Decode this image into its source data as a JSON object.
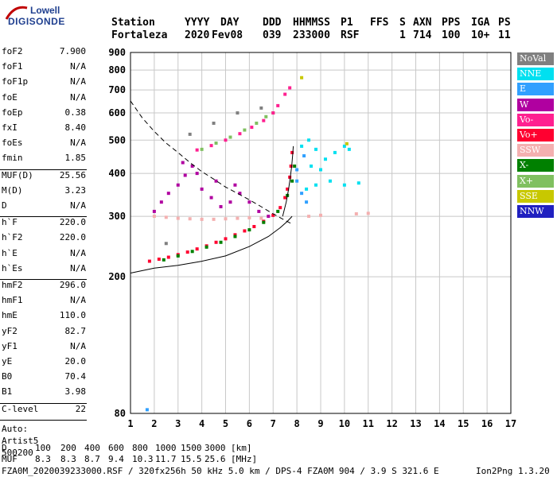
{
  "logo": {
    "line1": "Lowell",
    "line2": "DIGISONDE"
  },
  "header": {
    "labels": [
      "Station",
      "YYYY",
      "DAY",
      "DDD",
      "HHMMSS",
      "P1",
      "FFS",
      "S",
      "AXN",
      "PPS",
      "IGA",
      "PS"
    ],
    "values": [
      "Fortaleza",
      "2020",
      "Fev08",
      "039",
      "233000",
      "RSF",
      "1",
      "714",
      "100",
      "10+",
      "11"
    ]
  },
  "params_group1": [
    {
      "k": "foF2",
      "v": "7.900"
    },
    {
      "k": "foF1",
      "v": "N/A"
    },
    {
      "k": "foF1p",
      "v": "N/A"
    },
    {
      "k": "foE",
      "v": "N/A"
    },
    {
      "k": "foEp",
      "v": "0.38"
    },
    {
      "k": "fxI",
      "v": "8.40"
    },
    {
      "k": "foEs",
      "v": "N/A"
    },
    {
      "k": "fmin",
      "v": "1.85"
    }
  ],
  "params_group2": [
    {
      "k": "MUF(D)",
      "v": "25.56"
    },
    {
      "k": "M(D)",
      "v": "3.23"
    },
    {
      "k": "D",
      "v": "N/A"
    }
  ],
  "params_group3": [
    {
      "k": "h`F",
      "v": "220.0"
    },
    {
      "k": "h`F2",
      "v": "220.0"
    },
    {
      "k": "h`E",
      "v": "N/A"
    },
    {
      "k": "h`Es",
      "v": "N/A"
    }
  ],
  "params_group4": [
    {
      "k": "hmF2",
      "v": "296.0"
    },
    {
      "k": "hmF1",
      "v": "N/A"
    },
    {
      "k": "hmE",
      "v": "110.0"
    },
    {
      "k": "yF2",
      "v": "82.7"
    },
    {
      "k": "yF1",
      "v": "N/A"
    },
    {
      "k": "yE",
      "v": "20.0"
    },
    {
      "k": "B0",
      "v": "70.4"
    },
    {
      "k": "B1",
      "v": "3.98"
    }
  ],
  "params_group5": [
    {
      "k": "C-level",
      "v": "22"
    }
  ],
  "autoscale": {
    "line1": "Auto:",
    "line2": "Artist5",
    "line3": "500200"
  },
  "legend": [
    {
      "label": "NoVal",
      "color": "#808080"
    },
    {
      "label": "NNE",
      "color": "#00e0f0"
    },
    {
      "label": "E",
      "color": "#30a0ff"
    },
    {
      "label": "W",
      "color": "#b000a0"
    },
    {
      "label": "Vo-",
      "color": "#ff2090"
    },
    {
      "label": "Vo+",
      "color": "#ff0030"
    },
    {
      "label": "SSW",
      "color": "#f4b0b0"
    },
    {
      "label": "X-",
      "color": "#008000"
    },
    {
      "label": "X+",
      "color": "#80c060"
    },
    {
      "label": "SSE",
      "color": "#c8c800"
    },
    {
      "label": "NNW",
      "color": "#2020c0"
    }
  ],
  "footer": {
    "d_label": "D",
    "d_values": [
      "100",
      "200",
      "400",
      "600",
      "800",
      "1000",
      "1500",
      "3000"
    ],
    "d_unit": "[km]",
    "muf_label": "MUF",
    "muf_values": [
      "8.3",
      "8.3",
      "8.7",
      "9.4",
      "10.3",
      "11.7",
      "15.5",
      "25.6"
    ],
    "muf_unit": "[MHz]",
    "info": "FZA0M_2020039233000.RSF / 320fx256h 50 kHz 5.0 km / DPS-4 FZA0M 904 / 3.9 S 321.6 E",
    "version": "Ion2Png 1.3.20"
  },
  "chart_data": {
    "type": "scatter",
    "title": "",
    "xlabel": "",
    "ylabel": "",
    "xlim": [
      1,
      17
    ],
    "ylim": [
      80,
      900
    ],
    "y_scale": "log",
    "grid": true,
    "x_ticks": [
      1,
      2,
      3,
      4,
      5,
      6,
      7,
      8,
      9,
      10,
      11,
      12,
      13,
      14,
      15,
      16,
      17
    ],
    "y_ticks": [
      80,
      200,
      300,
      400,
      500,
      600,
      700,
      800,
      900
    ],
    "series": [
      {
        "name": "Vo+",
        "color": "#ff0030",
        "points": [
          [
            1.8,
            222
          ],
          [
            2.2,
            225
          ],
          [
            2.6,
            228
          ],
          [
            3.0,
            232
          ],
          [
            3.4,
            236
          ],
          [
            3.8,
            241
          ],
          [
            4.2,
            246
          ],
          [
            4.6,
            252
          ],
          [
            5.0,
            258
          ],
          [
            5.4,
            265
          ],
          [
            5.8,
            272
          ],
          [
            6.2,
            280
          ],
          [
            6.6,
            290
          ],
          [
            7.0,
            302
          ],
          [
            7.3,
            318
          ],
          [
            7.5,
            340
          ],
          [
            7.6,
            360
          ],
          [
            7.7,
            390
          ],
          [
            7.75,
            420
          ],
          [
            7.8,
            460
          ]
        ]
      },
      {
        "name": "X-",
        "color": "#008000",
        "points": [
          [
            2.4,
            224
          ],
          [
            3.0,
            230
          ],
          [
            3.6,
            237
          ],
          [
            4.2,
            244
          ],
          [
            4.8,
            252
          ],
          [
            5.4,
            262
          ],
          [
            6.0,
            274
          ],
          [
            6.6,
            288
          ],
          [
            7.2,
            310
          ],
          [
            7.6,
            345
          ],
          [
            7.8,
            380
          ],
          [
            7.9,
            420
          ]
        ]
      },
      {
        "name": "X+",
        "color": "#80c060",
        "points": [
          [
            4.0,
            470
          ],
          [
            4.6,
            490
          ],
          [
            5.2,
            510
          ],
          [
            5.8,
            535
          ],
          [
            6.3,
            560
          ],
          [
            6.7,
            585
          ],
          [
            7.0,
            600
          ]
        ]
      },
      {
        "name": "Vo-",
        "color": "#ff2090",
        "points": [
          [
            3.8,
            468
          ],
          [
            4.4,
            482
          ],
          [
            5.0,
            500
          ],
          [
            5.6,
            522
          ],
          [
            6.1,
            545
          ],
          [
            6.6,
            570
          ],
          [
            7.0,
            600
          ],
          [
            7.2,
            630
          ],
          [
            7.5,
            680
          ],
          [
            7.7,
            710
          ]
        ]
      },
      {
        "name": "W",
        "color": "#b000a0",
        "points": [
          [
            2.0,
            310
          ],
          [
            2.3,
            330
          ],
          [
            2.6,
            350
          ],
          [
            3.0,
            370
          ],
          [
            3.3,
            395
          ],
          [
            3.6,
            420
          ],
          [
            4.0,
            360
          ],
          [
            4.4,
            340
          ],
          [
            4.8,
            320
          ],
          [
            5.2,
            330
          ],
          [
            5.6,
            350
          ],
          [
            6.0,
            330
          ],
          [
            6.4,
            310
          ],
          [
            6.8,
            300
          ],
          [
            3.2,
            430
          ],
          [
            3.8,
            400
          ],
          [
            4.6,
            380
          ],
          [
            5.4,
            370
          ]
        ]
      },
      {
        "name": "SSW",
        "color": "#f4b0b0",
        "points": [
          [
            2.0,
            300
          ],
          [
            2.5,
            298
          ],
          [
            3.0,
            296
          ],
          [
            3.5,
            295
          ],
          [
            4.0,
            294
          ],
          [
            4.5,
            294
          ],
          [
            5.0,
            295
          ],
          [
            5.5,
            296
          ],
          [
            6.0,
            297
          ],
          [
            6.5,
            296
          ],
          [
            8.5,
            300
          ],
          [
            9.0,
            302
          ],
          [
            10.5,
            305
          ],
          [
            11.0,
            306
          ]
        ]
      },
      {
        "name": "NNE",
        "color": "#00e0f0",
        "points": [
          [
            8.2,
            480
          ],
          [
            8.5,
            500
          ],
          [
            8.8,
            470
          ],
          [
            9.2,
            440
          ],
          [
            9.6,
            460
          ],
          [
            10.0,
            480
          ],
          [
            10.2,
            470
          ],
          [
            8.4,
            360
          ],
          [
            8.8,
            370
          ],
          [
            9.4,
            380
          ],
          [
            10.0,
            370
          ],
          [
            10.6,
            375
          ],
          [
            8.6,
            420
          ],
          [
            9.0,
            410
          ]
        ]
      },
      {
        "name": "E",
        "color": "#30a0ff",
        "points": [
          [
            8.0,
            380
          ],
          [
            8.2,
            350
          ],
          [
            8.4,
            330
          ],
          [
            8.0,
            410
          ],
          [
            8.3,
            450
          ],
          [
            1.7,
            82
          ]
        ]
      },
      {
        "name": "SSE",
        "color": "#c8c800",
        "points": [
          [
            8.2,
            760
          ],
          [
            10.1,
            488
          ]
        ]
      },
      {
        "name": "NoVal",
        "color": "#808080",
        "points": [
          [
            2.5,
            250
          ],
          [
            4.5,
            560
          ],
          [
            5.5,
            600
          ],
          [
            6.5,
            620
          ],
          [
            3.5,
            520
          ]
        ]
      }
    ],
    "fitted_lines": [
      {
        "name": "profile",
        "style": "solid",
        "points": [
          [
            1.0,
            205
          ],
          [
            2.0,
            212
          ],
          [
            3.0,
            216
          ],
          [
            4.0,
            222
          ],
          [
            5.0,
            230
          ],
          [
            6.0,
            245
          ],
          [
            6.8,
            262
          ],
          [
            7.3,
            278
          ],
          [
            7.6,
            290
          ],
          [
            7.8,
            300
          ]
        ]
      },
      {
        "name": "profile",
        "style": "dashed",
        "points": [
          [
            1.0,
            650
          ],
          [
            1.5,
            580
          ],
          [
            2.0,
            530
          ],
          [
            2.5,
            490
          ],
          [
            3.0,
            460
          ],
          [
            3.5,
            430
          ],
          [
            4.0,
            405
          ],
          [
            4.5,
            385
          ],
          [
            5.0,
            365
          ],
          [
            5.5,
            350
          ],
          [
            6.0,
            335
          ],
          [
            6.5,
            320
          ],
          [
            7.0,
            305
          ],
          [
            7.5,
            292
          ],
          [
            7.8,
            285
          ]
        ]
      },
      {
        "name": "profile",
        "style": "solid",
        "points": [
          [
            7.4,
            300
          ],
          [
            7.55,
            330
          ],
          [
            7.65,
            360
          ],
          [
            7.72,
            390
          ],
          [
            7.78,
            420
          ],
          [
            7.82,
            450
          ],
          [
            7.85,
            480
          ]
        ]
      }
    ]
  }
}
